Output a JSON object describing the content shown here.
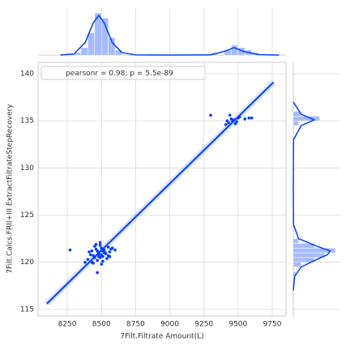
{
  "chart_data": [
    {
      "type": "scatter",
      "xlabel": "7Filt.Filtrate Amount(L)",
      "ylabel": "7Filt.Calcs.FRII+III ExtractFiltrateStepRecovery",
      "annotation": "pearsonr = 0.98; p = 5.5e-89",
      "color": "#023eff",
      "xlim": [
        8036,
        9851
      ],
      "ylim": [
        114.3,
        141.2
      ],
      "xticks": [
        8250,
        8500,
        8750,
        9000,
        9250,
        9500,
        9750
      ],
      "yticks": [
        115,
        120,
        125,
        130,
        135,
        140
      ],
      "grid": true,
      "x": [
        8480,
        8520,
        8450,
        8500,
        8550,
        8470,
        8430,
        8510,
        8560,
        8490,
        8400,
        8530,
        8460,
        8580,
        8440,
        8500,
        8520,
        8470,
        8410,
        8540,
        8490,
        8450,
        8600,
        8380,
        8510,
        8480,
        8430,
        8560,
        8500,
        8470,
        8270,
        8420,
        8530,
        8490,
        8460,
        8550,
        8510,
        8440,
        8480,
        8570,
        9300,
        9420,
        9450,
        9480,
        9500,
        9430,
        9470,
        9510,
        9460,
        9550,
        9580,
        9600,
        9440,
        9490,
        9410
      ],
      "values": [
        121.0,
        121.3,
        120.5,
        120.8,
        121.6,
        121.2,
        120.0,
        120.6,
        121.1,
        121.8,
        120.3,
        120.9,
        121.4,
        121.5,
        120.7,
        119.8,
        121.0,
        120.2,
        121.1,
        120.4,
        122.1,
        121.7,
        121.3,
        120.0,
        120.1,
        120.9,
        121.2,
        120.6,
        121.5,
        118.9,
        121.3,
        120.8,
        121.0,
        120.5,
        121.9,
        120.7,
        121.2,
        119.9,
        120.6,
        121.4,
        135.6,
        135.0,
        135.2,
        134.7,
        135.3,
        134.8,
        135.1,
        135.4,
        135.0,
        135.2,
        135.3,
        135.3,
        135.6,
        134.9,
        134.6
      ],
      "regression": {
        "x": [
          8100,
          9760
        ],
        "values": [
          115.6,
          139.1
        ]
      }
    },
    {
      "type": "histogram",
      "orientation": "vertical",
      "color": "#023eff",
      "bins": [
        8250,
        8300,
        8350,
        8400,
        8450,
        8500,
        8550,
        8600,
        8650,
        8700,
        8750,
        8800,
        8850,
        8900,
        8950,
        9000,
        9050,
        9100,
        9150,
        9200,
        9250,
        9300,
        9350,
        9400,
        9450,
        9500,
        9550,
        9600,
        9650
      ],
      "counts": [
        0,
        1,
        3,
        9,
        17,
        15,
        7,
        2,
        0,
        0,
        0,
        0,
        0,
        0,
        0,
        0,
        0,
        0,
        0,
        0,
        0,
        1,
        0,
        2,
        4,
        3,
        2,
        1
      ],
      "kde": {
        "x": [
          8200,
          8300,
          8380,
          8440,
          8480,
          8520,
          8580,
          8650,
          8750,
          9000,
          9300,
          9400,
          9470,
          9540,
          9650,
          9800
        ],
        "values": [
          0,
          0.5,
          5,
          13,
          16,
          13,
          5,
          1,
          0.1,
          0,
          0.1,
          1.5,
          3,
          1.5,
          0.2,
          0
        ]
      }
    },
    {
      "type": "histogram",
      "orientation": "horizontal",
      "color": "#023eff",
      "bins": [
        118.5,
        119,
        119.5,
        120,
        120.5,
        121,
        121.5,
        122,
        122.5,
        123,
        123.5,
        124,
        124.5,
        125,
        125.5,
        126,
        126.5,
        127,
        127.5,
        128,
        128.5,
        129,
        129.5,
        130,
        130.5,
        131,
        131.5,
        132,
        132.5,
        133,
        133.5,
        134,
        134.5,
        135,
        135.5,
        136
      ],
      "counts": [
        1,
        0,
        3,
        8,
        12,
        16,
        8,
        2,
        0,
        0,
        0,
        0,
        0,
        0,
        0,
        0,
        0,
        0,
        0,
        0,
        0,
        0,
        0,
        0,
        0,
        0,
        0,
        0,
        0,
        0,
        0,
        0,
        2,
        10,
        3
      ],
      "kde": {
        "x": [
          117,
          118.5,
          119.5,
          120.3,
          120.8,
          121.2,
          121.7,
          122.5,
          124,
          128,
          133,
          134.5,
          135.1,
          135.7,
          137
        ],
        "values": [
          0,
          0.5,
          3,
          9,
          13,
          14,
          9,
          2,
          0.1,
          0,
          0.1,
          3,
          8,
          3,
          0
        ]
      }
    }
  ]
}
